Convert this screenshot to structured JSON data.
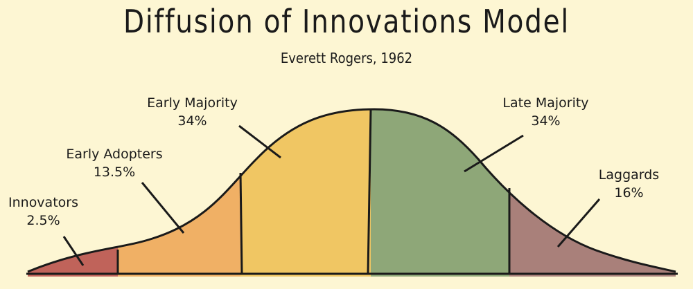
{
  "header": {
    "title": "Diffusion of Innovations Model",
    "subtitle": "Everett Rogers, 1962"
  },
  "segments": [
    {
      "name": "Innovators",
      "percent": "2.5%",
      "color": "#c0635a"
    },
    {
      "name": "Early Adopters",
      "percent": "13.5%",
      "color": "#f0b065"
    },
    {
      "name": "Early Majority",
      "percent": "34%",
      "color": "#f0c663"
    },
    {
      "name": "Late Majority",
      "percent": "34%",
      "color": "#8ea778"
    },
    {
      "name": "Laggards",
      "percent": "16%",
      "color": "#a9807a"
    }
  ]
}
